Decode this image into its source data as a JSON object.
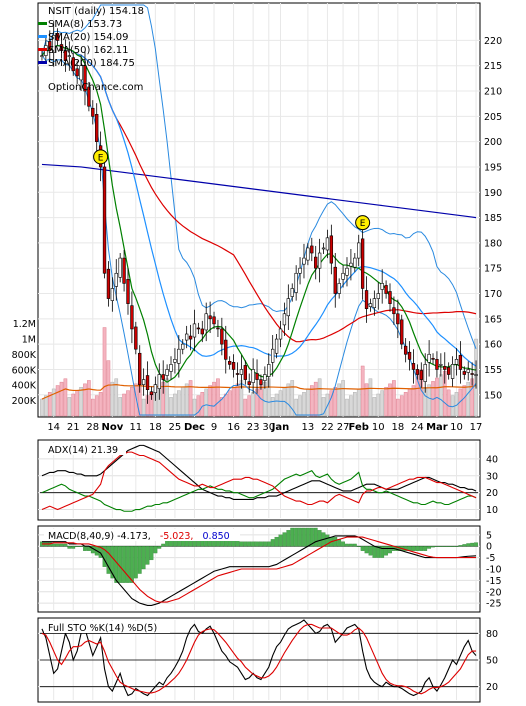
{
  "chart_data": [
    {
      "type": "candlestick",
      "panel": "price",
      "title": "NSIT (daily) 154.18",
      "watermark": "OptionChance.com",
      "legend": [
        {
          "label": "SMA(8) 153.73",
          "color": "#008000"
        },
        {
          "label": "SMA(20) 154.09",
          "color": "#1e90ff"
        },
        {
          "label": "SMA(50) 162.11",
          "color": "#dd0000"
        },
        {
          "label": "SMA(200) 184.75",
          "color": "#0000aa"
        }
      ],
      "yticks": [
        150,
        155,
        160,
        165,
        170,
        175,
        180,
        185,
        190,
        195,
        200,
        205,
        210,
        215,
        220
      ],
      "ylim": [
        146,
        227
      ],
      "volume_ticks": [
        "1.2M",
        "1M",
        "800K",
        "600K",
        "400K",
        "200K"
      ],
      "volume_tick_values": [
        1200000,
        1000000,
        800000,
        600000,
        400000,
        200000
      ],
      "volume_max": 1300000,
      "xticks": [
        {
          "label": "14",
          "i": 3
        },
        {
          "label": "21",
          "i": 8
        },
        {
          "label": "28",
          "i": 13
        },
        {
          "label": "Nov",
          "i": 18
        },
        {
          "label": "11",
          "i": 24
        },
        {
          "label": "18",
          "i": 29
        },
        {
          "label": "25",
          "i": 34
        },
        {
          "label": "Dec",
          "i": 39
        },
        {
          "label": "9",
          "i": 44
        },
        {
          "label": "16",
          "i": 49
        },
        {
          "label": "23",
          "i": 54
        },
        {
          "label": "30",
          "i": 58
        },
        {
          "label": "Jan",
          "i": 61
        },
        {
          "label": "13",
          "i": 68
        },
        {
          "label": "22",
          "i": 73
        },
        {
          "label": "27",
          "i": 77
        },
        {
          "label": "Feb",
          "i": 81
        },
        {
          "label": "10",
          "i": 86
        },
        {
          "label": "18",
          "i": 91
        },
        {
          "label": "24",
          "i": 96
        },
        {
          "label": "Mar",
          "i": 101
        },
        {
          "label": "10",
          "i": 106
        },
        {
          "label": "17",
          "i": 111
        }
      ],
      "earnings_markers": [
        {
          "label": "E",
          "i": 15,
          "price": 197
        },
        {
          "label": "E",
          "i": 82,
          "price": 184
        }
      ],
      "close": [
        217,
        219,
        218,
        221,
        220,
        218,
        216,
        217,
        214,
        213,
        215,
        210,
        207,
        205,
        200,
        195,
        174,
        169,
        171,
        174,
        177,
        172,
        168,
        163,
        159,
        152,
        153,
        151,
        150,
        152,
        154,
        153,
        155,
        156,
        157,
        159,
        160,
        162,
        161,
        164,
        163,
        162,
        166,
        165,
        164,
        163,
        160,
        157,
        156,
        155,
        154,
        155,
        153,
        152,
        155,
        153,
        152,
        154,
        156,
        159,
        161,
        163,
        166,
        169,
        171,
        174,
        175,
        177,
        179,
        178,
        175,
        178,
        179,
        181,
        176,
        170,
        172,
        174,
        175,
        176,
        177,
        180,
        171,
        167,
        168,
        169,
        170,
        172,
        170,
        168,
        166,
        164,
        160,
        158,
        157,
        155,
        154,
        153,
        156,
        158,
        157,
        155,
        156,
        155,
        154,
        156,
        157,
        155,
        154,
        155,
        154,
        154
      ]
    },
    {
      "type": "line",
      "panel": "adx",
      "title": "ADX(14) 21.39",
      "yticks": [
        40,
        30,
        20,
        10
      ],
      "ylim": [
        5,
        50
      ],
      "series": [
        {
          "name": "ADX",
          "color": "#000000",
          "values": [
            30,
            31,
            32,
            32,
            33,
            33,
            33,
            32,
            32,
            31,
            31,
            30,
            30,
            30,
            30,
            31,
            33,
            35,
            37,
            39,
            41,
            43,
            45,
            46,
            47,
            48,
            48,
            47,
            46,
            45,
            44,
            42,
            40,
            38,
            36,
            34,
            32,
            30,
            28,
            26,
            24,
            22,
            21,
            20,
            19,
            18,
            18,
            17,
            17,
            16,
            16,
            16,
            16,
            16,
            16,
            17,
            17,
            17,
            18,
            18,
            18,
            19,
            20,
            21,
            22,
            23,
            24,
            25,
            26,
            27,
            27,
            27,
            26,
            25,
            24,
            23,
            22,
            21,
            21,
            21,
            22,
            23,
            24,
            25,
            25,
            25,
            24,
            23,
            22,
            22,
            22,
            22,
            23,
            24,
            25,
            26,
            27,
            28,
            29,
            29,
            28,
            27,
            26,
            26,
            25,
            25,
            24,
            23,
            23,
            22,
            22,
            21
          ]
        },
        {
          "name": "+DI",
          "color": "#008000",
          "values": [
            20,
            21,
            22,
            23,
            24,
            25,
            24,
            22,
            21,
            20,
            19,
            18,
            18,
            17,
            16,
            15,
            13,
            12,
            11,
            10,
            10,
            9,
            9,
            9,
            10,
            10,
            11,
            12,
            12,
            13,
            13,
            14,
            14,
            15,
            16,
            17,
            18,
            19,
            20,
            21,
            22,
            22,
            23,
            24,
            23,
            22,
            22,
            21,
            21,
            20,
            20,
            19,
            18,
            17,
            17,
            18,
            19,
            20,
            21,
            22,
            24,
            26,
            28,
            29,
            30,
            31,
            30,
            31,
            32,
            33,
            30,
            29,
            30,
            31,
            28,
            26,
            25,
            26,
            27,
            28,
            30,
            32,
            24,
            22,
            22,
            21,
            20,
            20,
            21,
            20,
            19,
            18,
            17,
            16,
            15,
            14,
            14,
            13,
            13,
            14,
            15,
            14,
            14,
            13,
            13,
            14,
            15,
            16,
            17,
            18,
            18,
            17
          ]
        },
        {
          "name": "-DI",
          "color": "#dd0000",
          "values": [
            10,
            11,
            12,
            11,
            10,
            11,
            12,
            13,
            14,
            15,
            16,
            17,
            18,
            19,
            22,
            25,
            33,
            36,
            38,
            40,
            42,
            43,
            44,
            44,
            43,
            42,
            42,
            41,
            40,
            39,
            38,
            36,
            34,
            32,
            30,
            28,
            27,
            26,
            25,
            24,
            24,
            25,
            24,
            23,
            23,
            24,
            25,
            26,
            27,
            28,
            28,
            28,
            29,
            29,
            28,
            28,
            27,
            26,
            25,
            24,
            22,
            20,
            18,
            17,
            16,
            15,
            15,
            14,
            13,
            13,
            14,
            15,
            15,
            14,
            16,
            18,
            19,
            18,
            17,
            16,
            15,
            14,
            19,
            21,
            21,
            22,
            23,
            23,
            22,
            23,
            24,
            25,
            26,
            27,
            28,
            28,
            29,
            29,
            29,
            28,
            27,
            26,
            26,
            25,
            24,
            23,
            22,
            21,
            20,
            19,
            18,
            17
          ]
        }
      ]
    },
    {
      "type": "line+histogram",
      "panel": "macd",
      "title": "MACD(8,40,9) -4.173, -5.023, 0.850",
      "title_parts": [
        {
          "text": "MACD(8,40,9) -4.173,",
          "color": "#000000"
        },
        {
          "text": "-5.023,",
          "color": "#dd0000"
        },
        {
          "text": "0.850",
          "color": "#0000cc"
        }
      ],
      "yticks": [
        5,
        0,
        -5,
        -10,
        -15,
        -20,
        -25
      ],
      "ylim": [
        -28,
        8
      ],
      "series": [
        {
          "name": "MACD",
          "color": "#000000",
          "values": [
            2,
            2,
            2,
            2,
            2,
            2,
            2,
            1,
            1,
            1,
            1,
            0,
            0,
            -1,
            -2,
            -3,
            -6,
            -9,
            -12,
            -15,
            -17,
            -19,
            -21,
            -23,
            -24,
            -25,
            -25.5,
            -26,
            -26,
            -25.5,
            -25,
            -24,
            -23,
            -22,
            -21,
            -20,
            -19,
            -18,
            -17,
            -16,
            -15,
            -14,
            -13,
            -12,
            -11,
            -10.5,
            -10,
            -9.5,
            -9,
            -9,
            -9,
            -9,
            -9,
            -9,
            -9,
            -9,
            -9,
            -9,
            -9,
            -8.5,
            -8,
            -7,
            -6,
            -5,
            -4,
            -3,
            -2,
            -1,
            0,
            1,
            2,
            2.5,
            3,
            3.5,
            4,
            4.5,
            4.5,
            4.5,
            4.5,
            4.5,
            4.5,
            4,
            3,
            2,
            1,
            0,
            -0.5,
            -1,
            -1,
            -1,
            -1,
            -1.5,
            -2,
            -2.5,
            -3,
            -3.5,
            -4,
            -4.5,
            -5,
            -5,
            -5,
            -5,
            -5,
            -5,
            -5,
            -5,
            -5,
            -4.8,
            -4.6,
            -4.4,
            -4.3,
            -4.2
          ]
        },
        {
          "name": "Signal",
          "color": "#dd0000",
          "values": [
            1,
            1,
            1,
            1.5,
            1.5,
            1.5,
            1.5,
            1.5,
            1.5,
            1,
            1,
            1,
            1,
            0.5,
            0,
            -0.5,
            -1.5,
            -3,
            -5,
            -7,
            -9,
            -11,
            -13,
            -15,
            -17,
            -19,
            -20.5,
            -22,
            -23,
            -24,
            -24.5,
            -24.5,
            -24.5,
            -24,
            -23.5,
            -23,
            -22,
            -21,
            -20,
            -19,
            -18,
            -17,
            -16,
            -15,
            -14,
            -13,
            -12.5,
            -12,
            -11.5,
            -11,
            -10.5,
            -10,
            -10,
            -10,
            -10,
            -10,
            -10,
            -10,
            -10,
            -10,
            -10,
            -9.5,
            -9,
            -8.5,
            -8,
            -7,
            -6,
            -5,
            -4,
            -3,
            -2,
            -1,
            0,
            1,
            2,
            2.5,
            3,
            3.5,
            4,
            4,
            4,
            4,
            4,
            3.5,
            3,
            2.5,
            2,
            1.5,
            1,
            0.5,
            0,
            -0.5,
            -1,
            -1.5,
            -2,
            -2.5,
            -3,
            -3.5,
            -4,
            -4.5,
            -4.8,
            -5,
            -5,
            -5,
            -5,
            -5,
            -5,
            -5,
            -5,
            -5,
            -5,
            -5
          ]
        }
      ]
    },
    {
      "type": "line",
      "panel": "stochastic",
      "title": "Full STO %K(14) %D(5)",
      "yticks": [
        80,
        50,
        20
      ],
      "ylim": [
        5,
        95
      ],
      "series": [
        {
          "name": "%K",
          "color": "#000000",
          "values": [
            85,
            75,
            55,
            35,
            40,
            60,
            80,
            70,
            50,
            60,
            80,
            85,
            70,
            55,
            65,
            75,
            40,
            20,
            15,
            25,
            35,
            20,
            10,
            12,
            18,
            15,
            12,
            10,
            15,
            20,
            25,
            22,
            30,
            35,
            42,
            50,
            60,
            75,
            85,
            90,
            82,
            80,
            85,
            88,
            80,
            70,
            60,
            55,
            48,
            45,
            42,
            35,
            28,
            30,
            35,
            30,
            28,
            35,
            42,
            55,
            65,
            70,
            78,
            85,
            88,
            90,
            92,
            95,
            90,
            85,
            80,
            82,
            88,
            90,
            85,
            70,
            75,
            80,
            86,
            88,
            90,
            85,
            60,
            40,
            30,
            25,
            22,
            20,
            25,
            22,
            20,
            20,
            18,
            15,
            12,
            10,
            12,
            15,
            25,
            30,
            20,
            15,
            22,
            30,
            40,
            50,
            45,
            55,
            65,
            72,
            60,
            55
          ]
        },
        {
          "name": "%D",
          "color": "#dd0000",
          "values": [
            80,
            78,
            70,
            60,
            50,
            45,
            52,
            60,
            65,
            65,
            66,
            70,
            72,
            70,
            68,
            70,
            60,
            48,
            40,
            32,
            25,
            22,
            20,
            18,
            16,
            15,
            14,
            13,
            13,
            14,
            16,
            19,
            22,
            26,
            30,
            35,
            42,
            50,
            60,
            70,
            78,
            82,
            84,
            85,
            84,
            80,
            75,
            70,
            64,
            58,
            52,
            48,
            42,
            38,
            34,
            32,
            30,
            30,
            32,
            36,
            42,
            50,
            58,
            65,
            72,
            78,
            84,
            88,
            90,
            90,
            88,
            86,
            86,
            86,
            86,
            83,
            80,
            78,
            78,
            80,
            84,
            86,
            82,
            75,
            65,
            55,
            45,
            35,
            28,
            24,
            22,
            21,
            21,
            20,
            18,
            15,
            13,
            12,
            14,
            17,
            19,
            19,
            20,
            22,
            25,
            30,
            35,
            40,
            48,
            56,
            60,
            60
          ]
        }
      ]
    }
  ]
}
